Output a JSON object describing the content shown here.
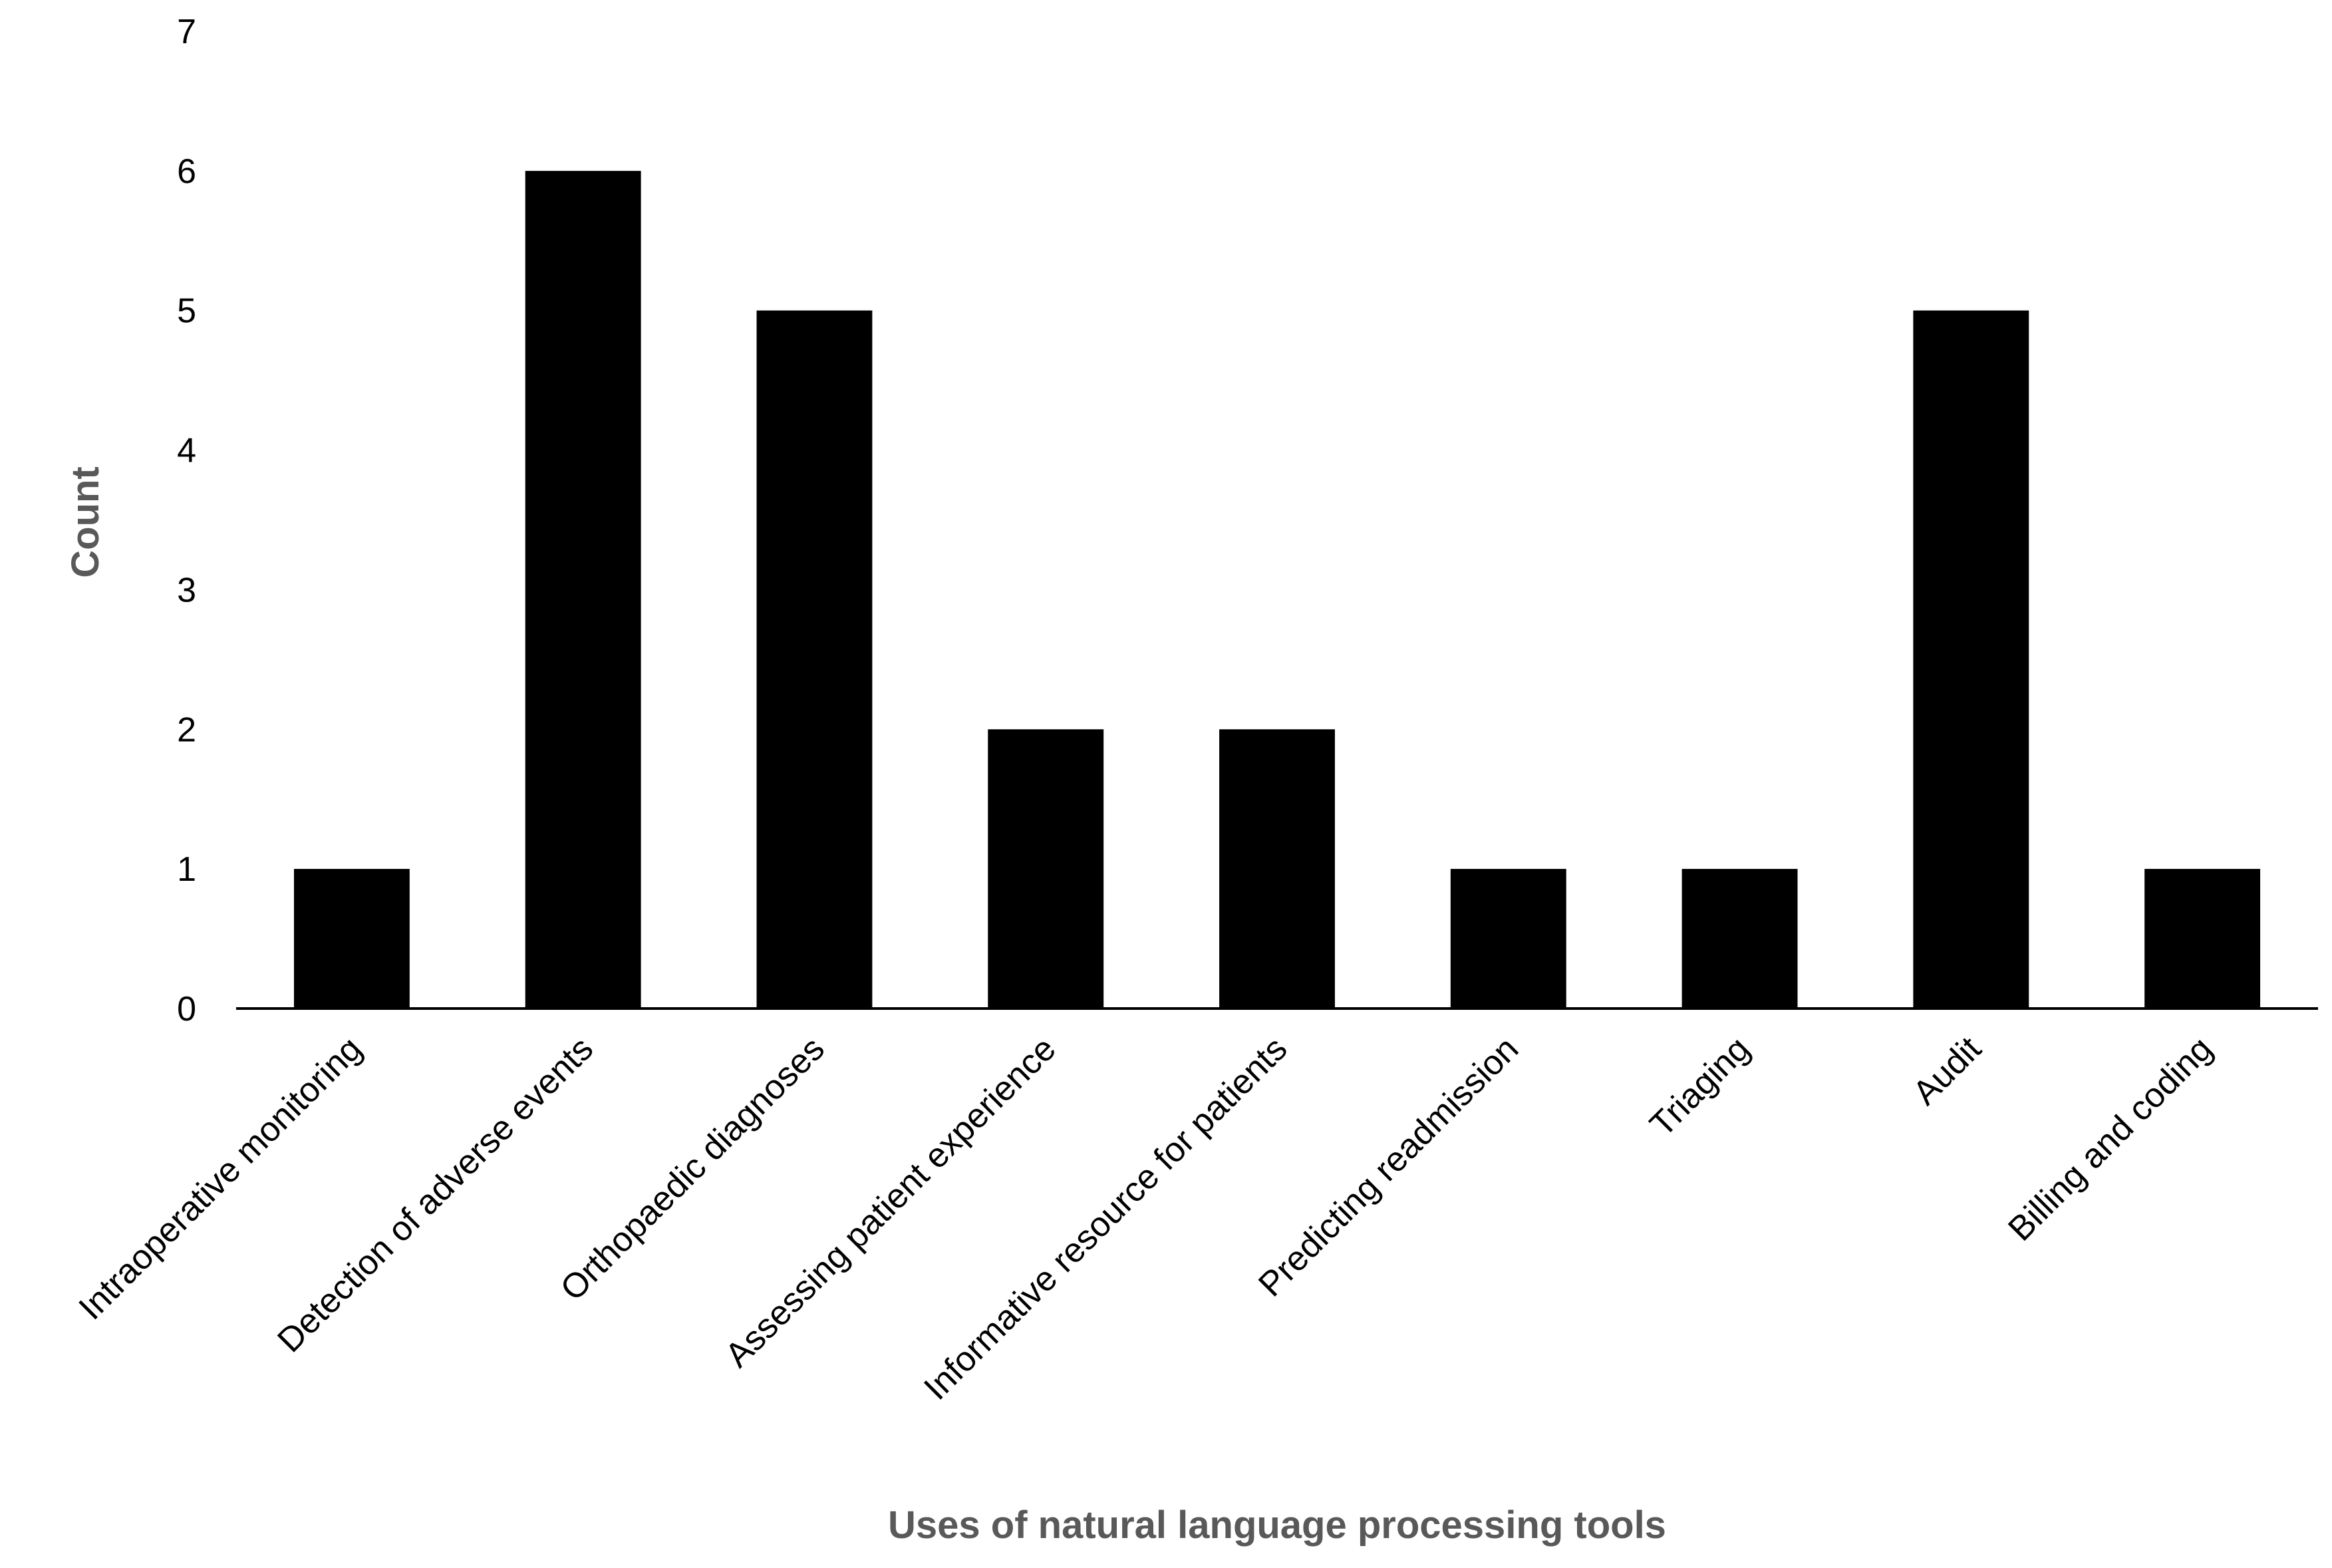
{
  "chart_data": {
    "type": "bar",
    "title": "",
    "xlabel": "Uses of natural language processing tools",
    "ylabel": "Count",
    "categories": [
      "Intraoperative monitoring",
      "Detection of adverse events",
      "Orthopaedic diagnoses",
      "Assessing patient experience",
      "Informative resource for patients",
      "Predicting readmission",
      "Triaging",
      "Audit",
      "Billing and coding"
    ],
    "values": [
      1,
      6,
      5,
      2,
      2,
      1,
      1,
      5,
      1
    ],
    "ylim": [
      0,
      7
    ],
    "yticks": [
      0,
      1,
      2,
      3,
      4,
      5,
      6,
      7
    ],
    "grid": false,
    "legend": "none",
    "bar_color": "#000000",
    "axis_title_color": "#595959"
  }
}
